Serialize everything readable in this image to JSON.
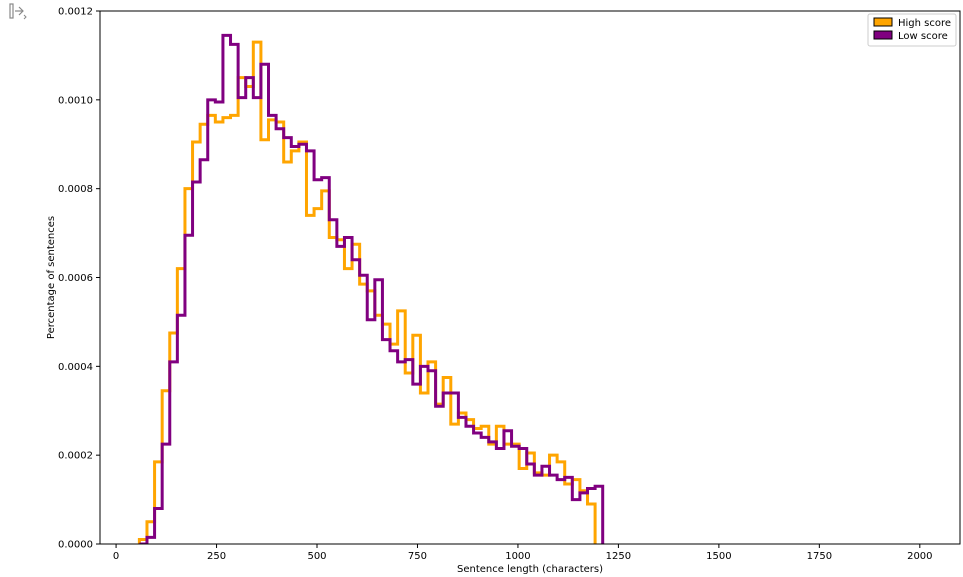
{
  "chart_data": {
    "type": "histogram",
    "xlabel": "Sentence length (characters)",
    "ylabel": "Percentage of sentences",
    "xlim": [
      -40,
      2100
    ],
    "ylim": [
      0,
      0.0012
    ],
    "xticks": [
      0,
      250,
      500,
      750,
      1000,
      1250,
      1500,
      1750,
      2000
    ],
    "xtick_labels": [
      "0",
      "250",
      "500",
      "750",
      "1000",
      "1250",
      "1500",
      "1750",
      "2000"
    ],
    "yticks": [
      0,
      0.0002,
      0.0004,
      0.0006,
      0.0008,
      0.001,
      0.0012
    ],
    "ytick_labels": [
      "0.0000",
      "0.0002",
      "0.0004",
      "0.0006",
      "0.0008",
      "0.0010",
      "0.0012"
    ],
    "legend_position": "upper-right",
    "bin_width": 18.9,
    "bins_start": 58,
    "series": [
      {
        "name": "High score",
        "color": "#FFA500",
        "values": [
          1e-05,
          5e-05,
          0.000185,
          0.000345,
          0.000475,
          0.00062,
          0.0008,
          0.000905,
          0.000945,
          0.000965,
          0.00095,
          0.00096,
          0.000965,
          0.00105,
          0.00103,
          0.00113,
          0.00091,
          0.000955,
          0.00095,
          0.00086,
          0.000885,
          0.000905,
          0.00074,
          0.000755,
          0.000795,
          0.00069,
          0.000685,
          0.00062,
          0.000675,
          0.000585,
          0.00057,
          0.000515,
          0.000495,
          0.00045,
          0.000525,
          0.000385,
          0.00047,
          0.00034,
          0.00041,
          0.000315,
          0.000375,
          0.00027,
          0.000295,
          0.00028,
          0.00026,
          0.000265,
          0.000225,
          0.000265,
          0.000225,
          0.000225,
          0.00017,
          0.000205,
          0.00016,
          0.000155,
          0.0002,
          0.000185,
          0.000135,
          0.000145,
          0.00012,
          9e-05
        ]
      },
      {
        "name": "Low score",
        "color": "#800080",
        "values": [
          0.0,
          1.5e-05,
          8e-05,
          0.000225,
          0.00041,
          0.000515,
          0.000695,
          0.000815,
          0.000865,
          0.001,
          0.000995,
          0.001145,
          0.001125,
          0.001005,
          0.00105,
          0.001005,
          0.00108,
          0.000965,
          0.000935,
          0.000915,
          0.000895,
          0.0009,
          0.000885,
          0.00082,
          0.000825,
          0.00073,
          0.00067,
          0.00069,
          0.00064,
          0.000605,
          0.000505,
          0.000595,
          0.00046,
          0.000435,
          0.00041,
          0.000415,
          0.00036,
          0.0004,
          0.00039,
          0.00031,
          0.00034,
          0.00034,
          0.000285,
          0.000265,
          0.00025,
          0.00024,
          0.00023,
          0.000215,
          0.000255,
          0.00022,
          0.000215,
          0.00018,
          0.000155,
          0.000175,
          0.000155,
          0.000145,
          0.00015,
          0.0001,
          0.000115,
          0.000125,
          0.00013
        ]
      }
    ],
    "grid": false
  },
  "ui": {
    "output_icon": "output-expand-icon"
  }
}
